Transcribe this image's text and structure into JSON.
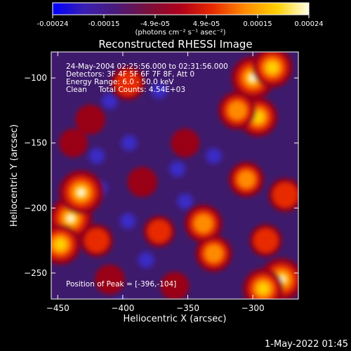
{
  "chart_data": {
    "type": "heatmap",
    "title": "Reconstructed RHESSI Image",
    "xlabel": "Heliocentric X (arcsec)",
    "ylabel": "Heliocentric Y (arcsec)",
    "xlim": [
      -455,
      -265
    ],
    "ylim": [
      -270,
      -80
    ],
    "x_ticks": [
      -450,
      -400,
      -350,
      -300
    ],
    "y_ticks": [
      -250,
      -200,
      -150,
      -100
    ],
    "colorbar": {
      "range": [
        -0.00024,
        0.00024
      ],
      "ticks": [
        "-0.00024",
        "-0.00015",
        "-4.9e-05",
        "4.9e-05",
        "0.00015",
        "0.00024"
      ],
      "units_text": "(photons cm⁻² s⁻¹ asec⁻²)",
      "colors": [
        "#0000ff",
        "#3a1fb0",
        "#4a1a78",
        "#7a0f3a",
        "#b0001a",
        "#e82a00",
        "#ff8a00",
        "#ffd000",
        "#ffffe8"
      ]
    },
    "annotations": {
      "time_range": "24-May-2004 02:25:56.000 to 02:31:56.000",
      "detectors": "Detectors: 3F 4F 5F 6F 7F 8F, Att 0",
      "energy": "Energy Range: 6.0 - 50.0 keV",
      "algorithm": "Clean     Total Counts: 4.54E+03",
      "peak": "Position of Peak = [-396,-104]"
    },
    "peak": [
      -396,
      -104
    ],
    "hot_regions": [
      {
        "x": -300,
        "y": -100,
        "level": 0.95
      },
      {
        "x": -285,
        "y": -92,
        "level": 0.85
      },
      {
        "x": -296,
        "y": -130,
        "level": 0.8
      },
      {
        "x": -312,
        "y": -125,
        "level": 0.75
      },
      {
        "x": -396,
        "y": -104,
        "level": 0.6
      },
      {
        "x": -440,
        "y": -208,
        "level": 0.95
      },
      {
        "x": -432,
        "y": -188,
        "level": 1.0
      },
      {
        "x": -448,
        "y": -228,
        "level": 0.85
      },
      {
        "x": -420,
        "y": -225,
        "level": 0.55
      },
      {
        "x": -278,
        "y": -255,
        "level": 0.95
      },
      {
        "x": -292,
        "y": -262,
        "level": 0.85
      },
      {
        "x": -338,
        "y": -212,
        "level": 0.75
      },
      {
        "x": -330,
        "y": -235,
        "level": 0.7
      },
      {
        "x": -305,
        "y": -178,
        "level": 0.65
      },
      {
        "x": -275,
        "y": -190,
        "level": 0.6
      },
      {
        "x": -290,
        "y": -225,
        "level": 0.55
      },
      {
        "x": -372,
        "y": -218,
        "level": 0.5
      },
      {
        "x": -385,
        "y": -180,
        "level": 0.45
      },
      {
        "x": -425,
        "y": -132,
        "level": 0.45
      },
      {
        "x": -438,
        "y": -150,
        "level": 0.4
      },
      {
        "x": -352,
        "y": -150,
        "level": 0.4
      },
      {
        "x": -410,
        "y": -255,
        "level": 0.45
      },
      {
        "x": -360,
        "y": -260,
        "level": 0.4
      }
    ],
    "cold_regions": [
      {
        "x": -410,
        "y": -118
      },
      {
        "x": -420,
        "y": -160
      },
      {
        "x": -395,
        "y": -150
      },
      {
        "x": -372,
        "y": -110
      },
      {
        "x": -358,
        "y": -170
      },
      {
        "x": -352,
        "y": -195
      },
      {
        "x": -396,
        "y": -210
      },
      {
        "x": -418,
        "y": -185
      },
      {
        "x": -382,
        "y": -240
      },
      {
        "x": -330,
        "y": -160
      },
      {
        "x": -402,
        "y": -275
      }
    ]
  },
  "footer_timestamp": "1-May-2022 01:45"
}
